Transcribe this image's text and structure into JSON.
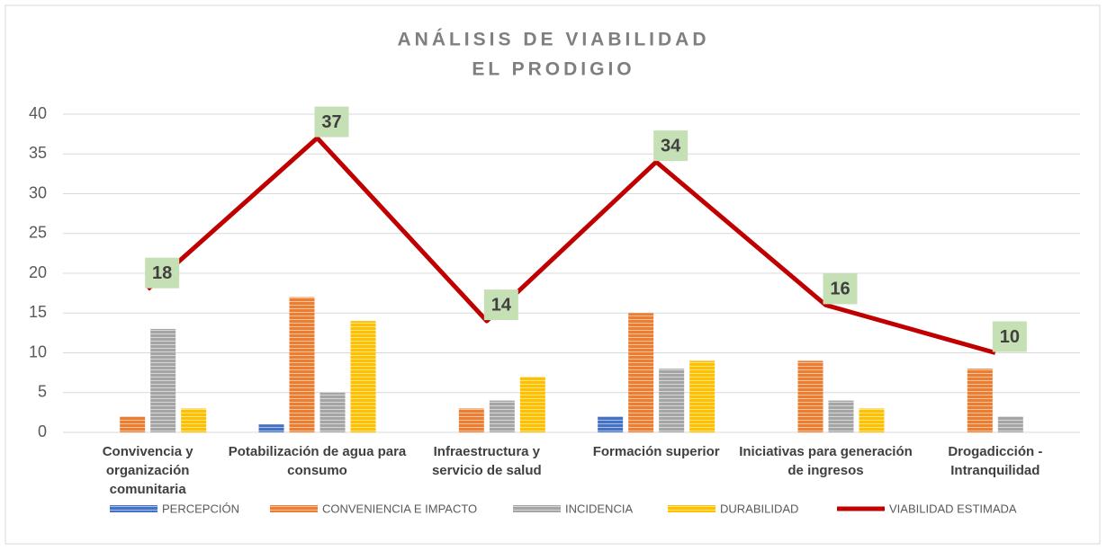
{
  "chart_data": {
    "type": "bar",
    "title": "ANÁLISIS DE VIABILIDAD",
    "subtitle": "EL PRODIGIO",
    "categories": [
      "Convivencia y organización comunitaria",
      "Potabilización de agua para consumo",
      "Infraestructura y servicio de salud",
      "Formación superior",
      "Iniciativas para generación de ingresos",
      "Drogadicción - Intranquilidad"
    ],
    "series": [
      {
        "name": "PERCEPCIÓN",
        "color": "#4472c4",
        "values": [
          0,
          1,
          0,
          2,
          0,
          0
        ]
      },
      {
        "name": "CONVENIENCIA E IMPACTO",
        "color": "#ed7d31",
        "values": [
          2,
          17,
          3,
          15,
          9,
          8
        ]
      },
      {
        "name": "INCIDENCIA",
        "color": "#a5a5a5",
        "values": [
          13,
          5,
          4,
          8,
          4,
          2
        ]
      },
      {
        "name": "DURABILIDAD",
        "color": "#ffc000",
        "values": [
          3,
          14,
          7,
          9,
          3,
          0
        ]
      },
      {
        "name": "VIABILIDAD ESTIMADA",
        "color": "#c00000",
        "type": "line",
        "values": [
          18,
          37,
          14,
          34,
          16,
          10
        ]
      }
    ],
    "ylim": [
      0,
      40
    ],
    "yticks": [
      0,
      5,
      10,
      15,
      20,
      25,
      30,
      35,
      40
    ],
    "grid": true,
    "legend": "bottom"
  }
}
